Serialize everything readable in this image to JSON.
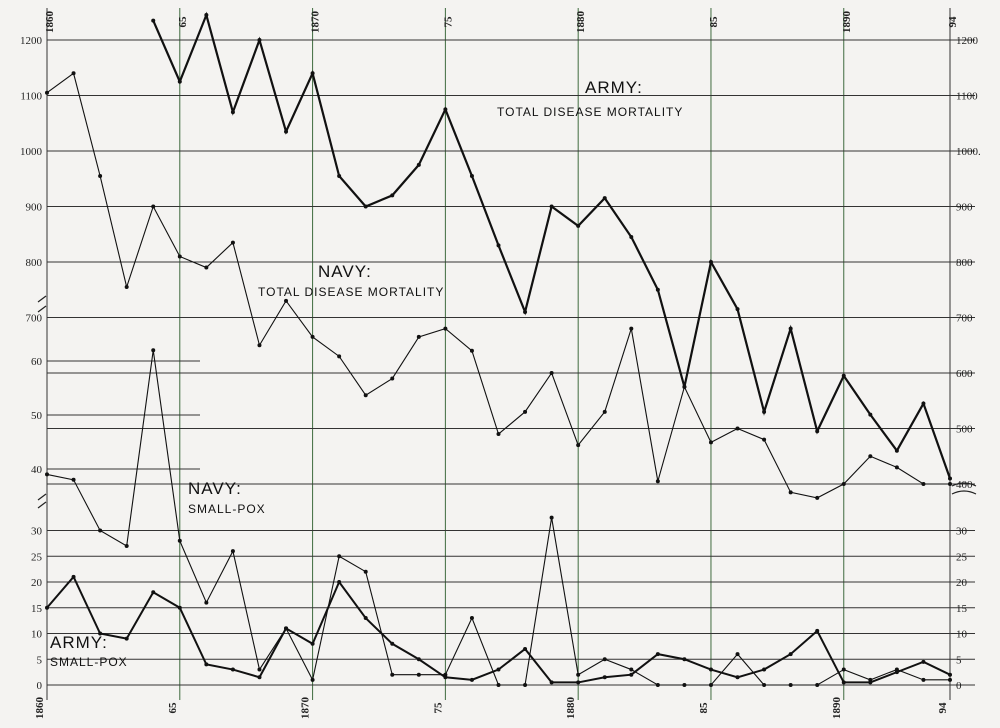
{
  "chart_data": {
    "type": "line",
    "x_labels": {
      "top": [
        "1860",
        "65",
        "1870",
        "75",
        "1880",
        "85",
        "1890",
        "94"
      ],
      "bottom": [
        "1860",
        "65",
        "1870",
        "75",
        "1880",
        "85",
        "1890",
        "94"
      ]
    },
    "annotations": {
      "army_total": [
        "ARMY:",
        "TOTAL DISEASE MORTALITY"
      ],
      "navy_total": [
        "NAVY:",
        "TOTAL DISEASE MORTALITY"
      ],
      "navy_smallpox": [
        "NAVY:",
        "SMALL-POX"
      ],
      "army_smallpox": [
        "ARMY:",
        "SMALL-POX"
      ]
    },
    "left_axis": {
      "upper_ticks": [
        "1200",
        "1100",
        "1000",
        "900",
        "800",
        "700"
      ],
      "middle_ticks": [
        "60",
        "50",
        "40"
      ],
      "lower_ticks": [
        "30",
        "25",
        "20",
        "15",
        "10",
        "5",
        "0"
      ]
    },
    "right_axis": {
      "upper_ticks": [
        "1200",
        "1100",
        "1000.",
        "900",
        "800",
        "700",
        "600",
        "500",
        "400"
      ],
      "lower_ticks": [
        "30",
        "25",
        "20",
        "15",
        "10",
        "5",
        "0"
      ]
    },
    "series": [
      {
        "key": "army_total",
        "x": [
          1864,
          1865,
          1866,
          1867,
          1868,
          1869,
          1870,
          1871,
          1872,
          1873,
          1874,
          1875,
          1876,
          1877,
          1878,
          1879,
          1880,
          1881,
          1882,
          1883,
          1884,
          1885,
          1886,
          1887,
          1888,
          1889,
          1890,
          1891,
          1892,
          1893,
          1894
        ],
        "y": [
          1235,
          1125,
          1245,
          1070,
          1200,
          1035,
          1140,
          955,
          900,
          920,
          975,
          1075,
          955,
          830,
          710,
          900,
          865,
          915,
          845,
          750,
          575,
          800,
          715,
          530,
          680,
          495,
          595,
          525,
          460,
          545,
          410
        ]
      },
      {
        "key": "navy_total",
        "x": [
          1860,
          1861,
          1862,
          1863,
          1864,
          1865,
          1866,
          1867,
          1868,
          1869,
          1870,
          1871,
          1872,
          1873,
          1874,
          1875,
          1876,
          1877,
          1878,
          1879,
          1880,
          1881,
          1882,
          1883,
          1884,
          1885,
          1886,
          1887,
          1888,
          1889,
          1890,
          1891,
          1892,
          1893,
          1894
        ],
        "y": [
          1105,
          1140,
          955,
          755,
          900,
          810,
          790,
          835,
          650,
          730,
          665,
          630,
          560,
          590,
          665,
          680,
          640,
          490,
          530,
          600,
          470,
          530,
          680,
          405,
          575,
          475,
          500,
          480,
          385,
          375,
          400,
          450,
          430,
          400,
          400
        ]
      },
      {
        "key": "navy_smallpox",
        "x": [
          1860,
          1861,
          1862,
          1863,
          1864,
          1865,
          1866,
          1867,
          1868,
          1869,
          1870,
          1871,
          1872,
          1873,
          1874,
          1875,
          1876,
          1877,
          1878,
          1879,
          1880,
          1881,
          1882,
          1883,
          1884,
          1885,
          1886,
          1887,
          1888,
          1889,
          1890,
          1891,
          1892,
          1893,
          1894
        ],
        "y": [
          39,
          38,
          30,
          27,
          62,
          28,
          16,
          26,
          3,
          11,
          1,
          25,
          22,
          2,
          2,
          2,
          13,
          0,
          0,
          31,
          2,
          5,
          3,
          0,
          0,
          0,
          6,
          0,
          0,
          0,
          3,
          1,
          3,
          1,
          1
        ]
      },
      {
        "key": "army_smallpox",
        "x": [
          1860,
          1861,
          1862,
          1863,
          1864,
          1865,
          1866,
          1867,
          1868,
          1869,
          1870,
          1871,
          1872,
          1873,
          1874,
          1875,
          1876,
          1877,
          1878,
          1879,
          1880,
          1881,
          1882,
          1883,
          1884,
          1885,
          1886,
          1887,
          1888,
          1889,
          1890,
          1891,
          1892,
          1893,
          1894
        ],
        "y": [
          15,
          21,
          10,
          9,
          18,
          15,
          4,
          3,
          1.5,
          11,
          8,
          20,
          13,
          8,
          5,
          1.5,
          1,
          3,
          7,
          0.5,
          0.5,
          1.5,
          2,
          6,
          5,
          3,
          1.5,
          3,
          6,
          10.5,
          0.5,
          0.5,
          2.5,
          4.5,
          2
        ]
      }
    ]
  }
}
